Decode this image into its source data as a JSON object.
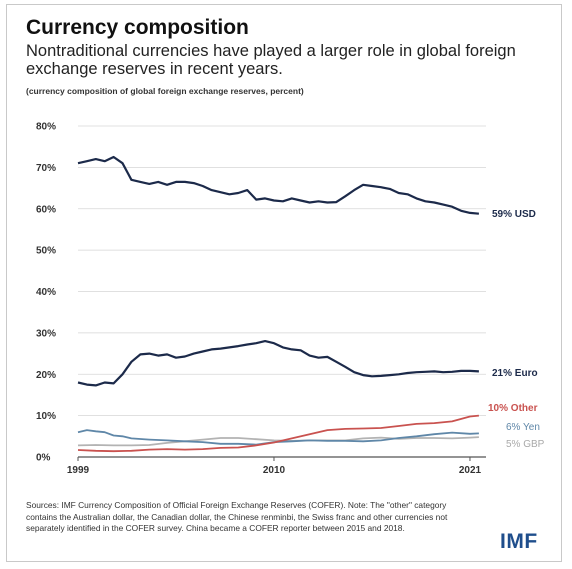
{
  "title": "Currency composition",
  "subtitle": "Nontraditional currencies have played a larger role in global foreign exchange reserves in recent years.",
  "note": "(currency composition of global foreign exchange reserves, percent)",
  "sources": "Sources: IMF Currency Composition of Official Foreign Exchange Reserves (COFER). Note: The \"other\" category contains the Australian dollar, the Canadian dollar, the Chinese renminbi, the Swiss franc and other currencies not separately identified in the COFER survey. China became a COFER reporter between 2015 and 2018.",
  "logo": "IMF",
  "chart_data": {
    "type": "line",
    "xlabel": "",
    "ylabel": "",
    "xlim": [
      1999,
      2021.9
    ],
    "ylim": [
      0,
      80
    ],
    "y_ticks": [
      0,
      10,
      20,
      30,
      40,
      50,
      60,
      70,
      80
    ],
    "y_tick_labels": [
      "0%",
      "10%",
      "20%",
      "30%",
      "40%",
      "50%",
      "60%",
      "70%",
      "80%"
    ],
    "x_ticks": [
      1999,
      2010,
      2021
    ],
    "x_tick_labels": [
      "1999",
      "2010",
      "2021"
    ],
    "grid": true,
    "series": [
      {
        "name": "59% USD",
        "color": "#1c2a4a",
        "x": [
          1999,
          1999.5,
          2000,
          2000.5,
          2001,
          2001.5,
          2002,
          2002.5,
          2003,
          2003.5,
          2004,
          2004.5,
          2005,
          2005.5,
          2006,
          2006.5,
          2007,
          2007.5,
          2008,
          2008.5,
          2009,
          2009.5,
          2010,
          2010.5,
          2011,
          2011.5,
          2012,
          2012.5,
          2013,
          2013.5,
          2014,
          2014.5,
          2015,
          2015.5,
          2016,
          2016.5,
          2017,
          2017.5,
          2018,
          2018.5,
          2019,
          2019.5,
          2020,
          2020.5,
          2021,
          2021.5
        ],
        "y": [
          71.0,
          71.5,
          72.0,
          71.5,
          72.5,
          71.0,
          67.0,
          66.5,
          66.0,
          66.5,
          65.8,
          66.5,
          66.5,
          66.2,
          65.5,
          64.5,
          64.0,
          63.5,
          63.8,
          64.5,
          62.2,
          62.5,
          62.0,
          61.8,
          62.5,
          62.0,
          61.5,
          61.8,
          61.5,
          61.6,
          63.0,
          64.5,
          65.8,
          65.5,
          65.2,
          64.8,
          63.8,
          63.5,
          62.5,
          61.8,
          61.5,
          61.0,
          60.5,
          59.5,
          59.0,
          58.8
        ]
      },
      {
        "name": "21% Euro",
        "color": "#1c2a4a",
        "x": [
          1999,
          1999.5,
          2000,
          2000.5,
          2001,
          2001.5,
          2002,
          2002.5,
          2003,
          2003.5,
          2004,
          2004.5,
          2005,
          2005.5,
          2006,
          2006.5,
          2007,
          2007.5,
          2008,
          2008.5,
          2009,
          2009.5,
          2010,
          2010.5,
          2011,
          2011.5,
          2012,
          2012.5,
          2013,
          2013.5,
          2014,
          2014.5,
          2015,
          2015.5,
          2016,
          2016.5,
          2017,
          2017.5,
          2018,
          2018.5,
          2019,
          2019.5,
          2020,
          2020.5,
          2021,
          2021.5
        ],
        "y": [
          18.0,
          17.5,
          17.3,
          18.0,
          17.8,
          20.0,
          23.0,
          24.8,
          25.0,
          24.5,
          24.8,
          24.0,
          24.3,
          25.0,
          25.5,
          26.0,
          26.2,
          26.5,
          26.8,
          27.2,
          27.5,
          28.0,
          27.5,
          26.5,
          26.0,
          25.8,
          24.5,
          24.0,
          24.2,
          23.0,
          21.8,
          20.5,
          19.8,
          19.5,
          19.6,
          19.8,
          20.0,
          20.3,
          20.5,
          20.6,
          20.7,
          20.5,
          20.6,
          20.8,
          20.8,
          20.7
        ]
      },
      {
        "name": "10% Other",
        "color": "#c9524f",
        "x": [
          1999,
          2000,
          2001,
          2002,
          2003,
          2004,
          2005,
          2006,
          2007,
          2008,
          2009,
          2010,
          2011,
          2012,
          2013,
          2014,
          2015,
          2016,
          2017,
          2018,
          2019,
          2020,
          2021,
          2021.5
        ],
        "y": [
          1.7,
          1.5,
          1.4,
          1.5,
          1.8,
          1.9,
          1.8,
          1.9,
          2.2,
          2.3,
          2.8,
          3.5,
          4.5,
          5.5,
          6.5,
          6.8,
          6.9,
          7.0,
          7.5,
          8.0,
          8.2,
          8.6,
          9.8,
          10.0
        ]
      },
      {
        "name": "6% Yen",
        "color": "#5f87a8",
        "x": [
          1999,
          1999.5,
          2000,
          2000.5,
          2001,
          2001.5,
          2002,
          2003,
          2004,
          2005,
          2006,
          2007,
          2008,
          2009,
          2010,
          2011,
          2012,
          2013,
          2014,
          2015,
          2016,
          2017,
          2018,
          2019,
          2020,
          2021,
          2021.5
        ],
        "y": [
          6.0,
          6.5,
          6.2,
          6.0,
          5.2,
          5.0,
          4.5,
          4.2,
          4.0,
          3.8,
          3.6,
          3.2,
          3.2,
          3.0,
          3.6,
          3.8,
          4.0,
          3.9,
          3.9,
          3.8,
          4.0,
          4.6,
          5.0,
          5.5,
          5.9,
          5.6,
          5.7
        ]
      },
      {
        "name": "5% GBP",
        "color": "#b3b3b3",
        "x": [
          1999,
          2000,
          2001,
          2002,
          2003,
          2004,
          2005,
          2006,
          2007,
          2008,
          2009,
          2010,
          2011,
          2012,
          2013,
          2014,
          2015,
          2016,
          2017,
          2018,
          2019,
          2020,
          2021,
          2021.5
        ],
        "y": [
          2.8,
          2.9,
          2.8,
          2.8,
          2.9,
          3.4,
          3.8,
          4.2,
          4.6,
          4.6,
          4.3,
          4.0,
          3.9,
          4.0,
          4.0,
          4.0,
          4.5,
          4.7,
          4.4,
          4.6,
          4.6,
          4.5,
          4.7,
          4.8
        ]
      }
    ]
  }
}
